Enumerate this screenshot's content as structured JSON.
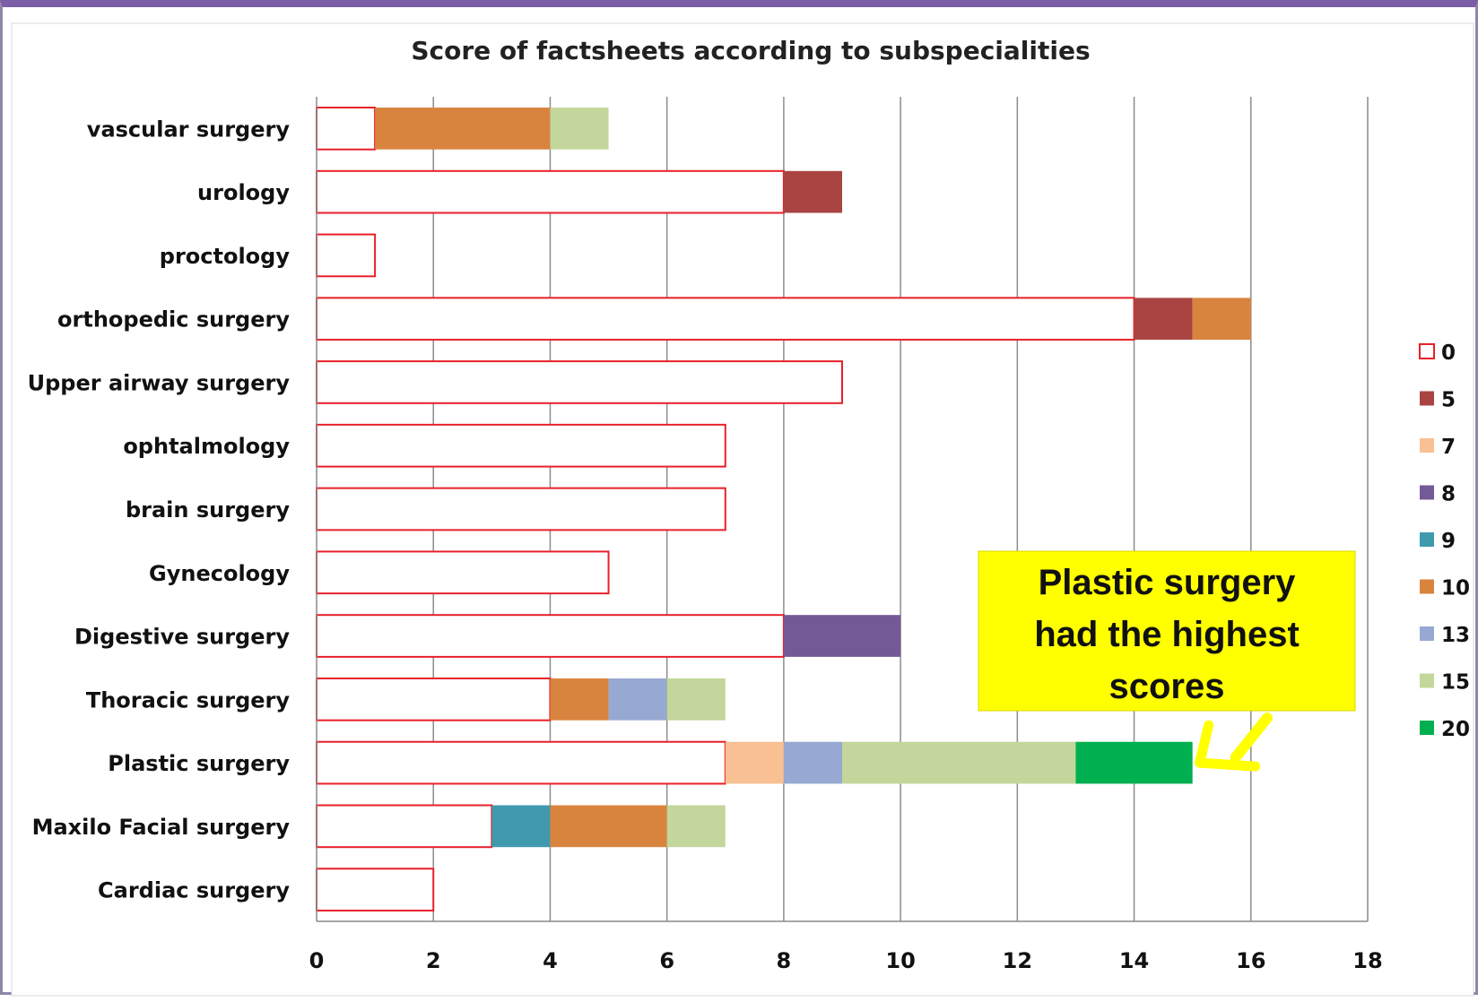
{
  "chart_data": {
    "type": "bar",
    "orientation": "horizontal",
    "stacked": true,
    "title": "Score of factsheets according to subspecialities",
    "xlim": [
      0,
      18
    ],
    "xticks": [
      "0",
      "2",
      "4",
      "6",
      "8",
      "10",
      "12",
      "14",
      "16",
      "18"
    ],
    "grid": true,
    "legend_position": "right",
    "categories": [
      "vascular surgery",
      "urology",
      "proctology",
      "orthopedic surgery",
      "Upper airway surgery",
      "ophtalmology",
      "brain surgery",
      "Gynecology",
      "Digestive surgery",
      "Thoracic surgery",
      "Plastic surgery",
      "Maxilo Facial surgery",
      "Cardiac surgery"
    ],
    "series": [
      {
        "name": "0",
        "color": "#ffffff",
        "stroke": "#e8202a",
        "values": [
          1,
          8,
          1,
          14,
          9,
          7,
          7,
          5,
          8,
          4,
          7,
          3,
          2
        ]
      },
      {
        "name": "5",
        "color": "#a94442",
        "values": [
          0,
          1,
          0,
          1,
          0,
          0,
          0,
          0,
          0,
          0,
          0,
          0,
          0
        ]
      },
      {
        "name": "7",
        "color": "#f8c093",
        "values": [
          0,
          0,
          0,
          0,
          0,
          0,
          0,
          0,
          0,
          0,
          1,
          0,
          0
        ]
      },
      {
        "name": "8",
        "color": "#735a96",
        "values": [
          0,
          0,
          0,
          0,
          0,
          0,
          0,
          0,
          2,
          0,
          0,
          0,
          0
        ]
      },
      {
        "name": "9",
        "color": "#3f9aae",
        "values": [
          0,
          0,
          0,
          0,
          0,
          0,
          0,
          0,
          0,
          0,
          0,
          1,
          0
        ]
      },
      {
        "name": "10",
        "color": "#d9843e",
        "values": [
          3,
          0,
          0,
          1,
          0,
          0,
          0,
          0,
          0,
          1,
          0,
          2,
          0
        ]
      },
      {
        "name": "13",
        "color": "#97a9d2",
        "values": [
          0,
          0,
          0,
          0,
          0,
          0,
          0,
          0,
          0,
          1,
          1,
          0,
          0
        ]
      },
      {
        "name": "15",
        "color": "#c3d69b",
        "values": [
          1,
          0,
          0,
          0,
          0,
          0,
          0,
          0,
          0,
          1,
          4,
          1,
          0
        ]
      },
      {
        "name": "20",
        "color": "#00b050",
        "values": [
          0,
          0,
          0,
          0,
          0,
          0,
          0,
          0,
          0,
          0,
          2,
          0,
          0
        ]
      }
    ],
    "annotation": {
      "lines": [
        "Plastic surgery",
        "had the highest",
        "scores"
      ],
      "background": "#ffff00",
      "arrow_color": "#ffff00",
      "points_to": "Plastic surgery",
      "points_to_value": 15
    }
  }
}
